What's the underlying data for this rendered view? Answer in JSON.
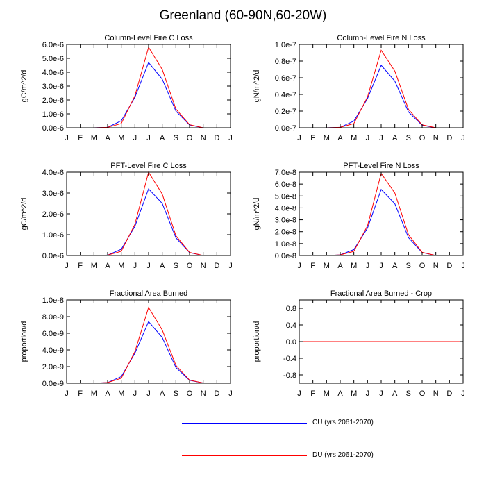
{
  "title": "Greenland (60-90N,60-20W)",
  "months": [
    "J",
    "F",
    "M",
    "A",
    "M",
    "J",
    "J",
    "A",
    "S",
    "O",
    "N",
    "D",
    "J"
  ],
  "colors": {
    "CU": "#0000ff",
    "DU": "#ff0000",
    "axis": "#000000"
  },
  "legend": [
    {
      "key": "CU",
      "label": "CU (yrs 2061-2070)"
    },
    {
      "key": "DU",
      "label": "DU (yrs 2061-2070)"
    }
  ],
  "chart_data": [
    {
      "type": "line",
      "title": "Column-Level Fire C Loss",
      "ylabel": "gC/m^2/d",
      "ylim": [
        0,
        6e-06
      ],
      "yticks": [
        0,
        1e-06,
        2e-06,
        3e-06,
        4e-06,
        5e-06,
        6e-06
      ],
      "yticklabels": [
        "0.0e-6",
        "1.0e-6",
        "2.0e-6",
        "3.0e-6",
        "4.0e-6",
        "5.0e-6",
        "6.0e-6"
      ],
      "x": [
        "J",
        "F",
        "M",
        "A",
        "M",
        "J",
        "J",
        "A",
        "S",
        "O",
        "N",
        "D",
        "J"
      ],
      "series": [
        {
          "name": "CU (yrs 2061-2070)",
          "values": [
            0,
            0,
            0,
            3e-08,
            5e-07,
            2.2e-06,
            4.7e-06,
            3.5e-06,
            1.2e-06,
            2e-07,
            0,
            0,
            0
          ]
        },
        {
          "name": "DU (yrs 2061-2070)",
          "values": [
            0,
            0,
            0,
            3e-08,
            3e-07,
            2.3e-06,
            5.8e-06,
            4.2e-06,
            1.35e-06,
            2.2e-07,
            0,
            0,
            0
          ]
        }
      ]
    },
    {
      "type": "line",
      "title": "Column-Level Fire N Loss",
      "ylabel": "gN/m^2/d",
      "ylim": [
        0,
        1e-07
      ],
      "yticks": [
        0,
        2e-08,
        4e-08,
        6e-08,
        8e-08,
        1e-07
      ],
      "yticklabels": [
        "0.0e-7",
        "0.2e-7",
        "0.4e-7",
        "0.6e-7",
        "0.8e-7",
        "1.0e-7"
      ],
      "x": [
        "J",
        "F",
        "M",
        "A",
        "M",
        "J",
        "J",
        "A",
        "S",
        "O",
        "N",
        "D",
        "J"
      ],
      "series": [
        {
          "name": "CU (yrs 2061-2070)",
          "values": [
            0,
            0,
            0,
            5e-10,
            8e-09,
            3.5e-08,
            7.5e-08,
            5.6e-08,
            1.9e-08,
            3e-09,
            0,
            0,
            0
          ]
        },
        {
          "name": "DU (yrs 2061-2070)",
          "values": [
            0,
            0,
            0,
            5e-10,
            5e-09,
            3.7e-08,
            9.3e-08,
            6.8e-08,
            2.2e-08,
            3.5e-09,
            0,
            0,
            0
          ]
        }
      ]
    },
    {
      "type": "line",
      "title": "PFT-Level Fire C Loss",
      "ylabel": "gC/m^2/d",
      "ylim": [
        0,
        4e-06
      ],
      "yticks": [
        0,
        1e-06,
        2e-06,
        3e-06,
        4e-06
      ],
      "yticklabels": [
        "0.0e-6",
        "1.0e-6",
        "2.0e-6",
        "3.0e-6",
        "4.0e-6"
      ],
      "x": [
        "J",
        "F",
        "M",
        "A",
        "M",
        "J",
        "J",
        "A",
        "S",
        "O",
        "N",
        "D",
        "J"
      ],
      "series": [
        {
          "name": "CU (yrs 2061-2070)",
          "values": [
            0,
            0,
            0,
            2e-08,
            3e-07,
            1.4e-06,
            3.2e-06,
            2.5e-06,
            8.5e-07,
            1.4e-07,
            0,
            0,
            0
          ]
        },
        {
          "name": "DU (yrs 2061-2070)",
          "values": [
            0,
            0,
            0,
            2e-08,
            2e-07,
            1.5e-06,
            4e-06,
            2.95e-06,
            9.5e-07,
            1.5e-07,
            0,
            0,
            0
          ]
        }
      ]
    },
    {
      "type": "line",
      "title": "PFT-Level Fire N Loss",
      "ylabel": "gN/m^2/d",
      "ylim": [
        0,
        7e-08
      ],
      "yticks": [
        0,
        1e-08,
        2e-08,
        3e-08,
        4e-08,
        5e-08,
        6e-08,
        7e-08
      ],
      "yticklabels": [
        "0.0e-8",
        "1.0e-8",
        "2.0e-8",
        "3.0e-8",
        "4.0e-8",
        "5.0e-8",
        "6.0e-8",
        "7.0e-8"
      ],
      "x": [
        "J",
        "F",
        "M",
        "A",
        "M",
        "J",
        "J",
        "A",
        "S",
        "O",
        "N",
        "D",
        "J"
      ],
      "series": [
        {
          "name": "CU (yrs 2061-2070)",
          "values": [
            0,
            0,
            0,
            5e-10,
            5e-09,
            2.3e-08,
            5.55e-08,
            4.35e-08,
            1.5e-08,
            2.5e-09,
            0,
            0,
            0
          ]
        },
        {
          "name": "DU (yrs 2061-2070)",
          "values": [
            0,
            0,
            0,
            5e-10,
            3.5e-09,
            2.5e-08,
            6.9e-08,
            5.25e-08,
            1.75e-08,
            2.7e-09,
            0,
            0,
            0
          ]
        }
      ]
    },
    {
      "type": "line",
      "title": "Fractional Area Burned",
      "ylabel": "proportion/d",
      "ylim": [
        0,
        1e-08
      ],
      "yticks": [
        0,
        2e-09,
        4e-09,
        6e-09,
        8e-09,
        1e-08
      ],
      "yticklabels": [
        "0.0e-9",
        "2.0e-9",
        "4.0e-9",
        "6.0e-9",
        "8.0e-9",
        "1.0e-8"
      ],
      "x": [
        "J",
        "F",
        "M",
        "A",
        "M",
        "J",
        "J",
        "A",
        "S",
        "O",
        "N",
        "D",
        "J"
      ],
      "series": [
        {
          "name": "CU (yrs 2061-2070)",
          "values": [
            0,
            0,
            0,
            8e-11,
            8e-10,
            3.6e-09,
            7.4e-09,
            5.5e-09,
            1.9e-09,
            3.5e-10,
            3e-11,
            0,
            0
          ]
        },
        {
          "name": "DU (yrs 2061-2070)",
          "values": [
            0,
            0,
            0,
            8e-11,
            6e-10,
            3.8e-09,
            9.1e-09,
            6.4e-09,
            2.15e-09,
            3.8e-10,
            3e-11,
            0,
            0
          ]
        }
      ]
    },
    {
      "type": "line",
      "title": "Fractional Area Burned - Crop",
      "ylabel": "proportion/d",
      "ylim": [
        -1,
        1
      ],
      "yticks": [
        -0.8,
        -0.4,
        0,
        0.4,
        0.8
      ],
      "yticklabels": [
        "-0.8",
        "-0.4",
        "0.0",
        "0.4",
        "0.8"
      ],
      "x": [
        "J",
        "F",
        "M",
        "A",
        "M",
        "J",
        "J",
        "A",
        "S",
        "O",
        "N",
        "D",
        "J"
      ],
      "series": [
        {
          "name": "CU (yrs 2061-2070)",
          "values": [
            0,
            0,
            0,
            0,
            0,
            0,
            0,
            0,
            0,
            0,
            0,
            0,
            0
          ]
        },
        {
          "name": "DU (yrs 2061-2070)",
          "values": [
            0,
            0,
            0,
            0,
            0,
            0,
            0,
            0,
            0,
            0,
            0,
            0,
            0
          ]
        }
      ]
    }
  ]
}
